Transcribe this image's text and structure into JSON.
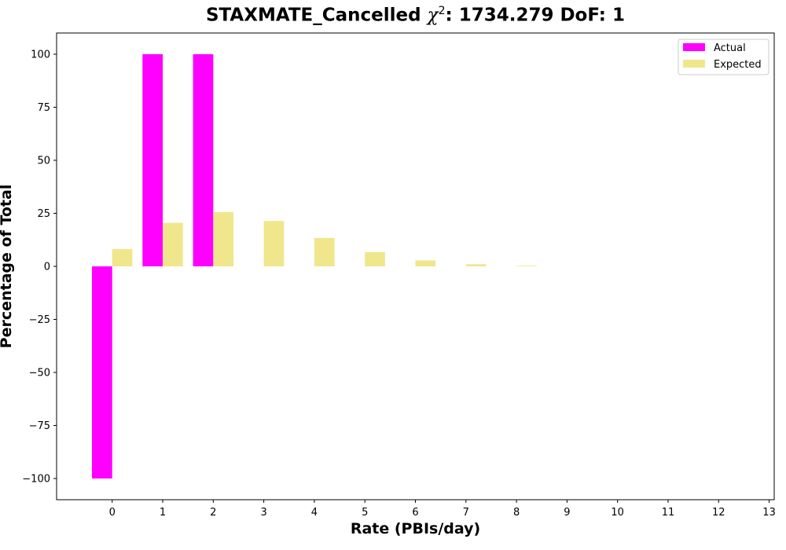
{
  "chart_data": {
    "type": "bar",
    "title": {
      "prefix": "STAXMATE_Cancelled ",
      "chi_symbol": "χ",
      "chi_exponent": "2",
      "suffix": ": 1734.279 DoF: 1"
    },
    "xlabel": "Rate (PBIs/day)",
    "ylabel": "Percentage of Total",
    "categories": [
      "0",
      "1",
      "2",
      "3",
      "4",
      "5",
      "6",
      "7",
      "8",
      "9",
      "10",
      "11",
      "12",
      "13"
    ],
    "x_ticks": [
      "0",
      "1",
      "2",
      "3",
      "4",
      "5",
      "6",
      "7",
      "8",
      "9",
      "10",
      "11",
      "12",
      "13"
    ],
    "y_ticks": [
      "100",
      "75",
      "50",
      "25",
      "0",
      "−25",
      "−50",
      "−75",
      "−100"
    ],
    "y_tick_values": [
      100,
      75,
      50,
      25,
      0,
      -25,
      -50,
      -75,
      -100
    ],
    "ylim": [
      -110,
      110
    ],
    "xlim": [
      -1.1,
      13.1
    ],
    "series": [
      {
        "name": "Actual",
        "color": "#ff00ff",
        "values": [
          -100,
          100,
          100,
          0,
          0,
          0,
          0,
          0,
          0,
          0,
          0,
          0,
          0,
          0
        ]
      },
      {
        "name": "Expected",
        "color": "#f0e68c",
        "values": [
          8.2,
          20.5,
          25.6,
          21.4,
          13.4,
          6.7,
          2.8,
          1.0,
          0.3,
          0,
          0,
          0,
          0,
          0
        ]
      }
    ],
    "legend_position": "top-right",
    "grid": false
  }
}
